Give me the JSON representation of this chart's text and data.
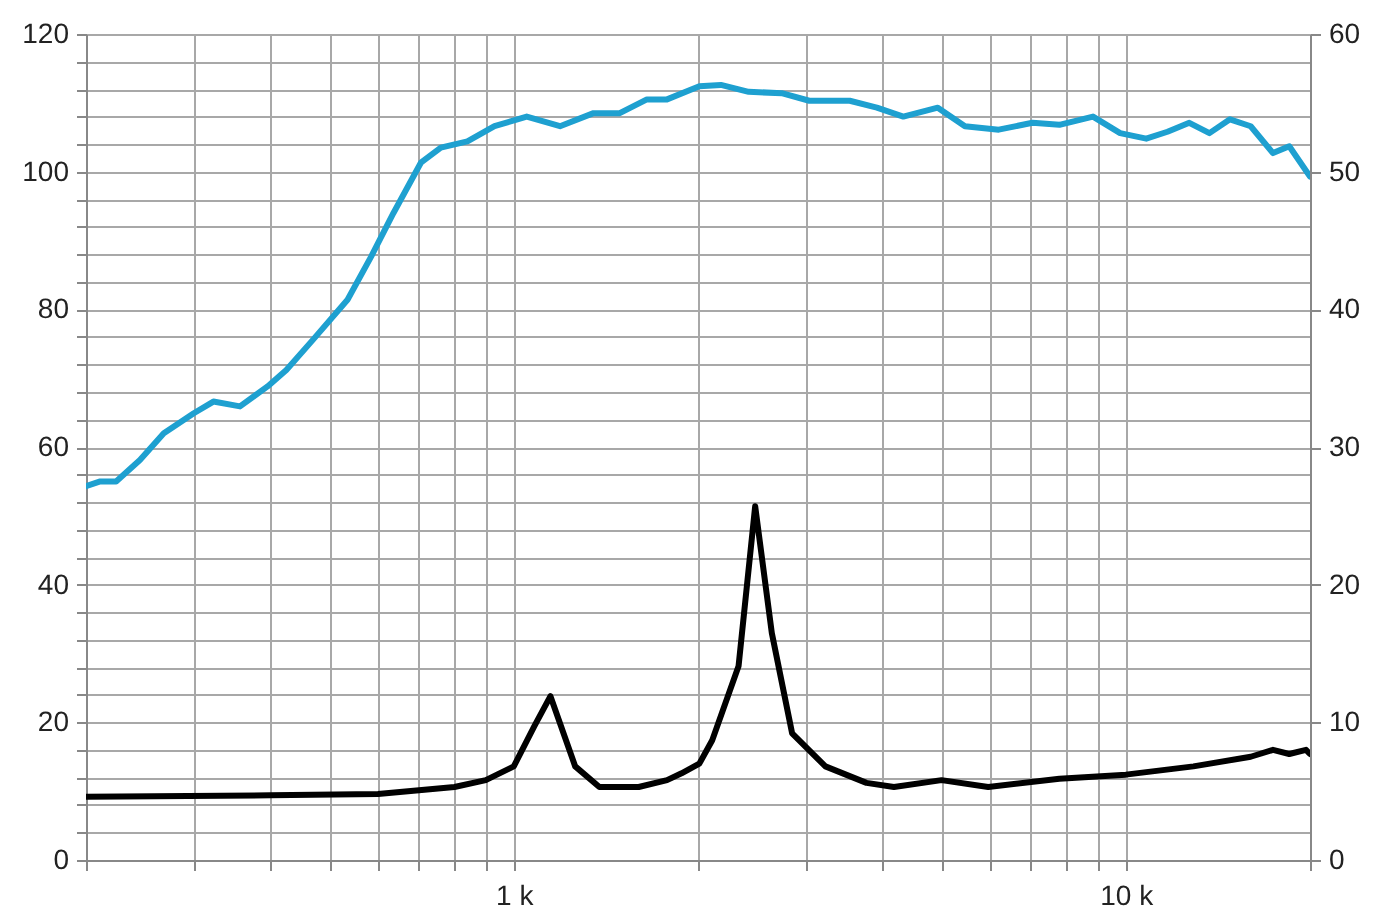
{
  "chart_data": {
    "type": "line",
    "log": "x",
    "grid": true,
    "marker": "none",
    "line_style": "solid",
    "xlim": [
      200,
      20000
    ],
    "xticks": [
      {
        "value": 200,
        "label": null
      },
      {
        "value": 300,
        "label": null
      },
      {
        "value": 400,
        "label": null
      },
      {
        "value": 500,
        "label": null
      },
      {
        "value": 600,
        "label": null
      },
      {
        "value": 700,
        "label": null
      },
      {
        "value": 800,
        "label": null
      },
      {
        "value": 900,
        "label": null
      },
      {
        "value": 1000,
        "label": "1 k"
      },
      {
        "value": 2000,
        "label": null
      },
      {
        "value": 3000,
        "label": null
      },
      {
        "value": 4000,
        "label": null
      },
      {
        "value": 5000,
        "label": null
      },
      {
        "value": 6000,
        "label": null
      },
      {
        "value": 7000,
        "label": null
      },
      {
        "value": 8000,
        "label": null
      },
      {
        "value": 9000,
        "label": null
      },
      {
        "value": 10000,
        "label": "10 k"
      },
      {
        "value": 20000,
        "label": null
      }
    ],
    "ylim": [
      0,
      120
    ],
    "yticks": [
      0,
      {
        "value": 4,
        "label": null
      },
      {
        "value": 8,
        "label": null
      },
      {
        "value": 12,
        "label": null
      },
      {
        "value": 16,
        "label": null
      },
      20,
      {
        "value": 24,
        "label": null
      },
      {
        "value": 28,
        "label": null
      },
      {
        "value": 32,
        "label": null
      },
      {
        "value": 36,
        "label": null
      },
      40,
      {
        "value": 44,
        "label": null
      },
      {
        "value": 48,
        "label": null
      },
      {
        "value": 52,
        "label": null
      },
      {
        "value": 56,
        "label": null
      },
      60,
      {
        "value": 64,
        "label": null
      },
      {
        "value": 68,
        "label": null
      },
      {
        "value": 72,
        "label": null
      },
      {
        "value": 76,
        "label": null
      },
      80,
      {
        "value": 84,
        "label": null
      },
      {
        "value": 88,
        "label": null
      },
      {
        "value": 92,
        "label": null
      },
      {
        "value": 96,
        "label": null
      },
      100,
      {
        "value": 104,
        "label": null
      },
      {
        "value": 108,
        "label": null
      },
      {
        "value": 112,
        "label": null
      },
      {
        "value": 116,
        "label": null
      },
      120
    ],
    "y2lim": [
      0,
      60
    ],
    "y2ticks": [
      0,
      10,
      20,
      30,
      40,
      50,
      60
    ],
    "series": [
      {
        "color": "#1ea0d0",
        "x": [
          200,
          211,
          224,
          245,
          268,
          300,
          323,
          357,
          396,
          425,
          470,
          535,
          585,
          636,
          705,
          760,
          840,
          930,
          1050,
          1190,
          1350,
          1490,
          1650,
          1780,
          2010,
          2180,
          2420,
          2740,
          3040,
          3540,
          3920,
          4330,
          4930,
          5460,
          6200,
          7040,
          7790,
          8840,
          9790,
          10800,
          11700,
          12700,
          13700,
          14800,
          16000,
          17400,
          18500,
          20000
        ],
        "values": [
          54.3,
          55.0,
          55.0,
          58.1,
          62.0,
          64.9,
          66.6,
          65.9,
          68.8,
          71.2,
          75.6,
          81.4,
          87.7,
          94.0,
          101.3,
          103.5,
          104.4,
          106.6,
          108.0,
          106.6,
          108.5,
          108.5,
          110.5,
          110.5,
          112.4,
          112.6,
          111.6,
          111.4,
          110.3,
          110.3,
          109.3,
          108.0,
          109.3,
          106.6,
          106.1,
          107.1,
          106.8,
          108.0,
          105.6,
          104.8,
          105.8,
          107.1,
          105.6,
          107.6,
          106.6,
          102.7,
          103.7,
          99.3
        ]
      },
      {
        "color": "#000000",
        "axis": "y2",
        "x": [
          200,
          400,
          600,
          800,
          900,
          1000,
          1080,
          1148,
          1260,
          1380,
          1600,
          1780,
          1880,
          2010,
          2110,
          2330,
          2480,
          2640,
          2850,
          3230,
          3770,
          4180,
          5000,
          5960,
          7790,
          10000,
          12900,
          16000,
          17400,
          18500,
          19700,
          20000
        ],
        "values": [
          4.6,
          4.7,
          4.8,
          5.3,
          5.8,
          6.8,
          9.7,
          11.9,
          6.8,
          5.3,
          5.3,
          5.8,
          6.3,
          7.0,
          8.7,
          14.1,
          25.7,
          16.5,
          9.2,
          6.8,
          5.6,
          5.3,
          5.8,
          5.3,
          5.9,
          6.2,
          6.8,
          7.5,
          8.0,
          7.7,
          8.0,
          7.7
        ]
      }
    ]
  }
}
